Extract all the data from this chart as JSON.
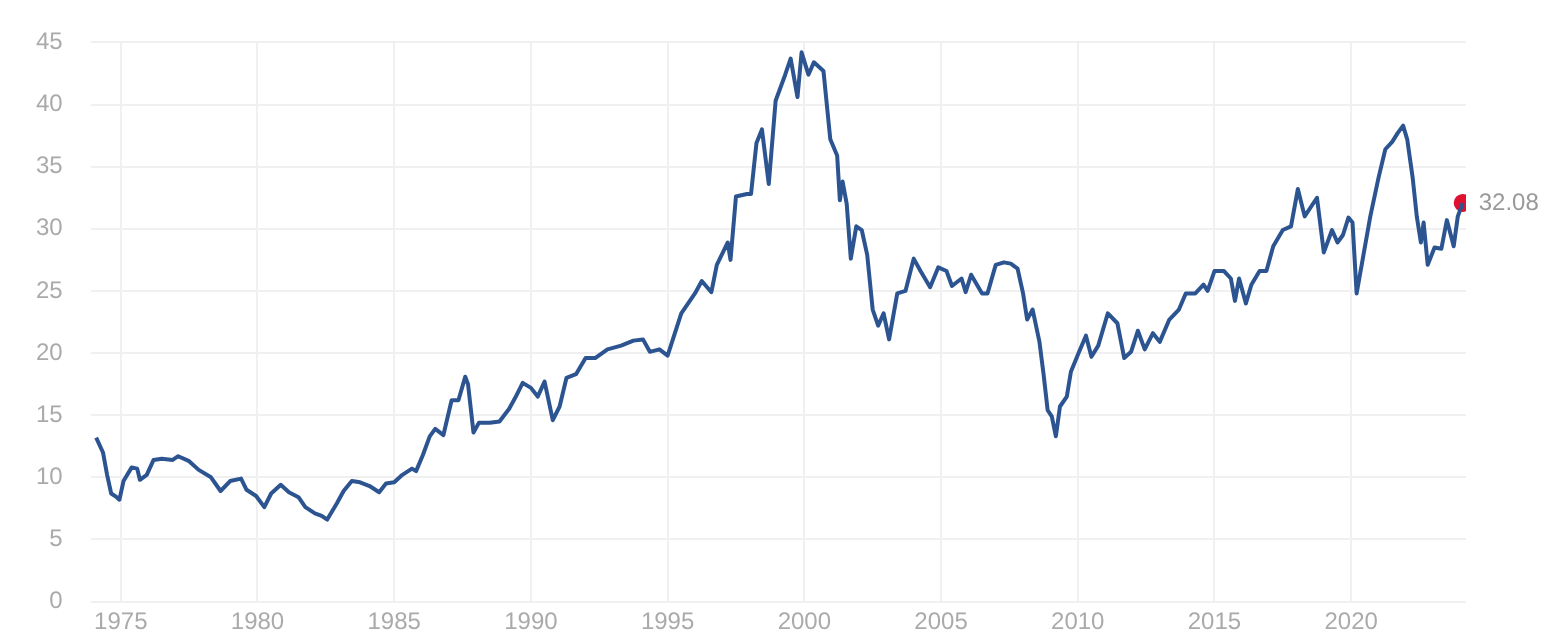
{
  "chart_data": {
    "type": "line",
    "xlim": [
      1973.9,
      2024.2
    ],
    "xticks": [
      1975,
      1980,
      1985,
      1990,
      1995,
      2000,
      2005,
      2010,
      2015,
      2020
    ],
    "ylim": [
      0,
      45
    ],
    "yticks": [
      0,
      5,
      10,
      15,
      20,
      25,
      30,
      35,
      40,
      45
    ],
    "grid": true,
    "legend": false,
    "marker": "none",
    "line_style": "solid",
    "annotations": [
      {
        "text": "32.08",
        "x": 2024.08,
        "y": 32.08
      }
    ],
    "series": [
      {
        "color": "#2c5491",
        "x": [
          1974.1,
          1974.35,
          1974.5,
          1974.65,
          1974.85,
          1974.95,
          1975.1,
          1975.4,
          1975.6,
          1975.7,
          1975.95,
          1976.2,
          1976.5,
          1976.9,
          1977.1,
          1977.5,
          1977.85,
          1978.3,
          1978.65,
          1979.0,
          1979.4,
          1979.6,
          1979.95,
          1980.25,
          1980.5,
          1980.85,
          1981.15,
          1981.5,
          1981.75,
          1982.1,
          1982.35,
          1982.55,
          1982.9,
          1983.15,
          1983.45,
          1983.75,
          1984.1,
          1984.45,
          1984.7,
          1985.0,
          1985.3,
          1985.65,
          1985.8,
          1986.05,
          1986.3,
          1986.5,
          1986.8,
          1987.1,
          1987.35,
          1987.6,
          1987.7,
          1987.9,
          1988.1,
          1988.5,
          1988.85,
          1989.2,
          1989.45,
          1989.7,
          1990.0,
          1990.25,
          1990.5,
          1990.8,
          1991.05,
          1991.3,
          1991.65,
          1992.0,
          1992.35,
          1992.8,
          1993.3,
          1993.75,
          1994.1,
          1994.35,
          1994.7,
          1995.0,
          1995.5,
          1996.0,
          1996.25,
          1996.6,
          1996.8,
          1997.2,
          1997.3,
          1997.5,
          1997.9,
          1998.05,
          1998.25,
          1998.45,
          1998.7,
          1998.95,
          1999.3,
          1999.5,
          1999.75,
          1999.9,
          2000.15,
          2000.35,
          2000.7,
          2000.95,
          2001.2,
          2001.3,
          2001.4,
          2001.55,
          2001.7,
          2001.9,
          2002.1,
          2002.3,
          2002.5,
          2002.7,
          2002.9,
          2003.1,
          2003.4,
          2003.7,
          2004.0,
          2004.25,
          2004.6,
          2004.9,
          2005.2,
          2005.4,
          2005.75,
          2005.9,
          2006.1,
          2006.5,
          2006.7,
          2007.0,
          2007.3,
          2007.55,
          2007.8,
          2008.0,
          2008.15,
          2008.35,
          2008.6,
          2008.75,
          2008.9,
          2009.05,
          2009.2,
          2009.35,
          2009.6,
          2009.75,
          2010.05,
          2010.3,
          2010.5,
          2010.75,
          2011.1,
          2011.45,
          2011.7,
          2011.95,
          2012.2,
          2012.45,
          2012.75,
          2013.0,
          2013.35,
          2013.7,
          2013.95,
          2014.3,
          2014.6,
          2014.75,
          2015.0,
          2015.35,
          2015.6,
          2015.75,
          2015.9,
          2016.15,
          2016.35,
          2016.65,
          2016.9,
          2017.15,
          2017.5,
          2017.8,
          2018.05,
          2018.3,
          2018.75,
          2019.0,
          2019.3,
          2019.5,
          2019.7,
          2019.9,
          2020.05,
          2020.2,
          2020.45,
          2020.7,
          2021.0,
          2021.25,
          2021.5,
          2021.7,
          2021.9,
          2022.05,
          2022.25,
          2022.4,
          2022.55,
          2022.65,
          2022.8,
          2023.05,
          2023.3,
          2023.5,
          2023.75,
          2023.9,
          2024.08
        ],
        "values": [
          13.2,
          12.0,
          10.2,
          8.7,
          8.4,
          8.2,
          9.7,
          10.8,
          10.7,
          9.8,
          10.2,
          11.4,
          11.5,
          11.4,
          11.7,
          11.3,
          10.6,
          10.0,
          8.9,
          9.7,
          9.9,
          9.0,
          8.5,
          7.6,
          8.7,
          9.4,
          8.8,
          8.4,
          7.6,
          7.1,
          6.9,
          6.6,
          7.9,
          8.9,
          9.7,
          9.6,
          9.3,
          8.8,
          9.5,
          9.6,
          10.2,
          10.7,
          10.5,
          11.8,
          13.3,
          13.9,
          13.4,
          16.2,
          16.2,
          18.1,
          17.5,
          13.6,
          14.4,
          14.4,
          14.5,
          15.5,
          16.5,
          17.6,
          17.2,
          16.5,
          17.7,
          14.6,
          15.7,
          18.0,
          18.3,
          19.6,
          19.6,
          20.3,
          20.6,
          21.0,
          21.1,
          20.1,
          20.3,
          19.8,
          23.2,
          24.8,
          25.8,
          24.9,
          27.1,
          28.9,
          27.5,
          32.6,
          32.8,
          32.8,
          36.9,
          38.0,
          33.6,
          40.3,
          42.4,
          43.7,
          40.6,
          44.2,
          42.4,
          43.4,
          42.7,
          37.2,
          35.9,
          32.3,
          33.8,
          32.0,
          27.6,
          30.2,
          29.9,
          27.9,
          23.5,
          22.2,
          23.2,
          21.1,
          24.8,
          25.0,
          27.6,
          26.6,
          25.3,
          26.9,
          26.6,
          25.4,
          26.0,
          24.9,
          26.3,
          24.8,
          24.8,
          27.1,
          27.3,
          27.2,
          26.8,
          24.8,
          22.7,
          23.5,
          20.9,
          18.3,
          15.4,
          14.9,
          13.3,
          15.7,
          16.5,
          18.5,
          20.1,
          21.4,
          19.7,
          20.6,
          23.2,
          22.4,
          19.6,
          20.1,
          21.8,
          20.3,
          21.6,
          20.9,
          22.7,
          23.5,
          24.8,
          24.8,
          25.5,
          25.0,
          26.6,
          26.6,
          26.0,
          24.2,
          26.0,
          24.0,
          25.5,
          26.6,
          26.6,
          28.6,
          29.9,
          30.2,
          33.2,
          31.0,
          32.5,
          28.1,
          29.9,
          28.9,
          29.5,
          30.9,
          30.5,
          24.8,
          27.9,
          31.0,
          34.1,
          36.4,
          37.0,
          37.7,
          38.3,
          37.2,
          34.1,
          31.0,
          28.9,
          30.5,
          27.1,
          28.5,
          28.4,
          30.7,
          28.6,
          31.0,
          32.08
        ]
      },
      {
        "type": "scatter",
        "color": "#e0102f",
        "marker": "circle",
        "x": [
          2024.08
        ],
        "values": [
          32.08
        ]
      }
    ]
  }
}
